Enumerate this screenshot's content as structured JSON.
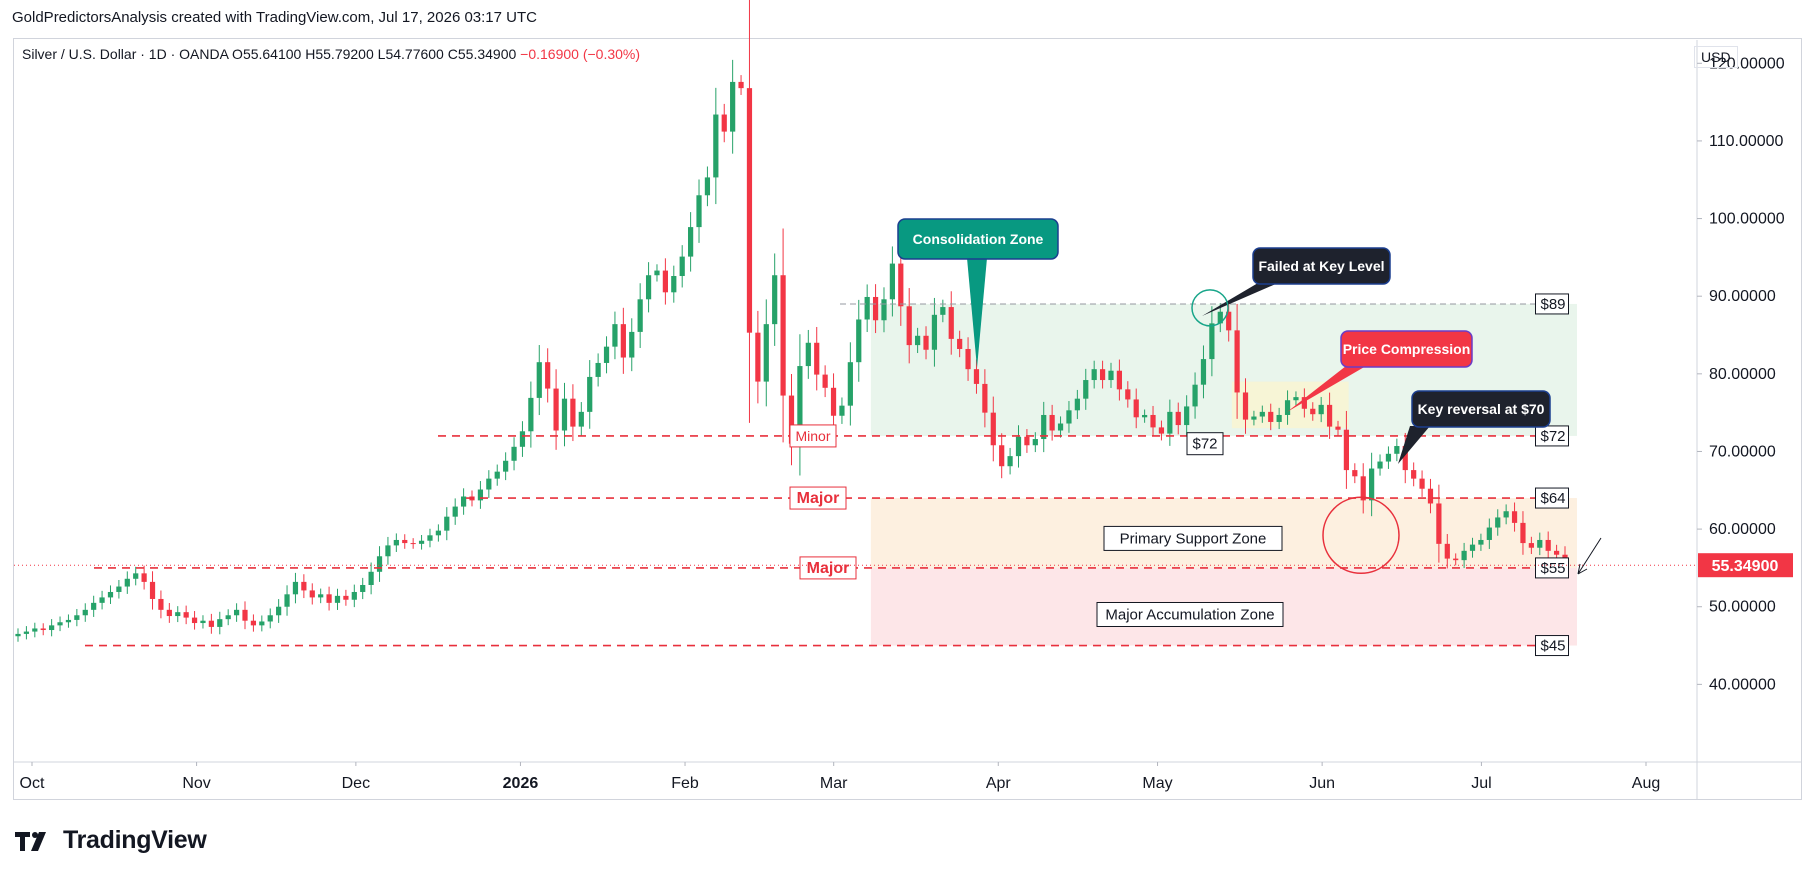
{
  "header": {
    "credit": "GoldPredictorsAnalysis created with TradingView.com, Jul 17, 2026 03:17 UTC"
  },
  "legend": {
    "symbol": "Silver / U.S. Dollar · 1D · OANDA",
    "open_label": "O",
    "open": "55.64100",
    "high_label": "H",
    "high": "55.79200",
    "low_label": "L",
    "low": "54.77600",
    "close_label": "C",
    "close": "55.34900",
    "change": "−0.16900 (−0.30%)"
  },
  "price_axis": {
    "currency": "USD"
  },
  "branding": {
    "logo_text": "TradingView"
  },
  "colors": {
    "up": "#26a269",
    "down": "#f23645",
    "level_line": "#e8303c",
    "consolidation_zone": "#e9f5ec",
    "support_zone": "#fdf0e0",
    "accumulation_zone": "#fde6e8",
    "compression_zone": "#f7f5d6",
    "teal_callout": "#089981",
    "dark_callout": "#1e222d",
    "red_callout": "#f23645",
    "last_price_tag": "#f23645"
  },
  "chart_data": {
    "type": "candlestick",
    "title": "",
    "ylim": [
      30,
      123
    ],
    "y_ticks": [
      "40.00000",
      "50.00000",
      "60.00000",
      "70.00000",
      "80.00000",
      "90.00000",
      "100.00000",
      "110.00000",
      "120.00000"
    ],
    "x_ticks": [
      {
        "label": "Oct",
        "date": "2025-10-01"
      },
      {
        "label": "Nov",
        "date": "2025-11-01"
      },
      {
        "label": "Dec",
        "date": "2025-12-01"
      },
      {
        "label": "2026",
        "date": "2026-01-01",
        "bold": true
      },
      {
        "label": "Feb",
        "date": "2026-02-01"
      },
      {
        "label": "Mar",
        "date": "2026-03-01"
      },
      {
        "label": "Apr",
        "date": "2026-04-01"
      },
      {
        "label": "May",
        "date": "2026-05-01"
      },
      {
        "label": "Jun",
        "date": "2026-06-01"
      },
      {
        "label": "Jul",
        "date": "2026-07-01"
      },
      {
        "label": "Aug",
        "date": "2026-08-01"
      }
    ],
    "x_range": [
      "2025-10-01",
      "2026-08-01"
    ],
    "last_price": {
      "value": 55.349,
      "label": "55.34900"
    },
    "closes": [
      46.5,
      46.8,
      47.2,
      47.0,
      47.6,
      48.0,
      48.3,
      48.9,
      49.6,
      50.5,
      51.2,
      51.9,
      52.6,
      53.6,
      54.3,
      53.2,
      51.0,
      49.6,
      48.8,
      49.3,
      48.6,
      47.9,
      48.2,
      47.4,
      48.4,
      48.9,
      49.6,
      48.2,
      47.6,
      48.1,
      48.9,
      50.0,
      51.6,
      53.2,
      52.1,
      51.2,
      51.6,
      50.5,
      51.4,
      50.9,
      51.9,
      52.8,
      54.5,
      56.5,
      57.9,
      58.6,
      58.2,
      58.1,
      58.5,
      59.2,
      59.8,
      61.6,
      62.9,
      64.2,
      63.7,
      65.1,
      66.5,
      67.4,
      68.8,
      70.6,
      72.6,
      76.9,
      81.5,
      78.1,
      72.7,
      76.8,
      73.2,
      75.1,
      79.6,
      81.4,
      83.5,
      86.4,
      82.1,
      85.4,
      89.6,
      92.7,
      93.3,
      90.5,
      92.6,
      95.1,
      98.9,
      103.0,
      105.3,
      113.4,
      111.2,
      117.6,
      116.8,
      85.3,
      79.0,
      86.4,
      92.7,
      77.2,
      71.0,
      81.0,
      84.0,
      79.9,
      78.2,
      74.6,
      75.9,
      81.5,
      87.0,
      89.9,
      86.9,
      89.6,
      94.2,
      88.7,
      83.7,
      84.9,
      83.1,
      87.6,
      88.6,
      84.5,
      83.2,
      80.6,
      78.7,
      75.0,
      70.8,
      68.1,
      69.4,
      71.9,
      70.8,
      71.6,
      74.7,
      72.7,
      73.6,
      75.3,
      76.8,
      79.2,
      80.6,
      79.2,
      80.4,
      78.0,
      76.7,
      74.4,
      74.7,
      73.1,
      72.3,
      75.1,
      73.4,
      75.8,
      78.6,
      81.9,
      86.5,
      88.0,
      85.6,
      77.6,
      74.1,
      74.5,
      75.1,
      73.8,
      74.7,
      76.6,
      77.0,
      75.5,
      74.8,
      76.0,
      73.2,
      72.8,
      67.6,
      66.8,
      63.7,
      67.8,
      68.7,
      69.7,
      70.7,
      67.6,
      66.5,
      65.2,
      63.3,
      58.1,
      56.2,
      56.0,
      57.2,
      58.0,
      58.6,
      60.2,
      61.5,
      62.3,
      60.8,
      58.2,
      57.6,
      58.6,
      57.2,
      56.7,
      55.3
    ],
    "levels": [
      {
        "value": 89,
        "label": "$89",
        "style": "grey-dashed"
      },
      {
        "value": 72,
        "label": "$72",
        "inline_label": "Minor"
      },
      {
        "value": 64,
        "label": "$64",
        "inline_label": "Major"
      },
      {
        "value": 55,
        "label": "$55",
        "inline_label": "Major"
      },
      {
        "value": 45,
        "label": "$45"
      }
    ],
    "zones": [
      {
        "label": "Consolidation Zone",
        "from": "2026-03-08",
        "to": "2026-07-19",
        "y0": 72,
        "y1": 89
      },
      {
        "label": "Primary Support Zone",
        "from": "2026-03-08",
        "to": "2026-07-19",
        "y0": 55,
        "y1": 64
      },
      {
        "label": "Major Accumulation Zone",
        "from": "2026-03-08",
        "to": "2026-07-19",
        "y0": 45,
        "y1": 55
      },
      {
        "label": "",
        "from": "2026-05-15",
        "to": "2026-06-06",
        "y0": 73,
        "y1": 79
      }
    ],
    "annotations": [
      {
        "text": "Consolidation Zone",
        "kind": "teal-callout"
      },
      {
        "text": "Failed at Key Level",
        "kind": "dark-callout"
      },
      {
        "text": "Price Compression",
        "kind": "red-callout"
      },
      {
        "text": "Key reversal at $70",
        "kind": "dark-callout"
      },
      {
        "text": "$72",
        "kind": "price-tag"
      }
    ]
  }
}
